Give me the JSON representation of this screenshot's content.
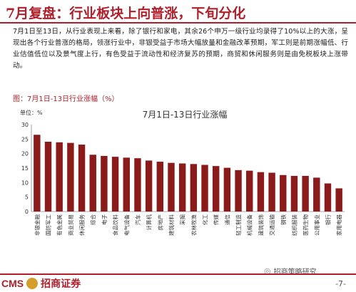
{
  "header": {
    "title": "7月复盘：行业板块上向普涨，下旬分化"
  },
  "body": {
    "paragraph": "7月1日至13日，从行业表现上来看，除了银行和家电，其余26个申万一级行业均录得了10%以上的大涨，呈现出各个行业普涨的格局，领涨行业中，非银受益于市场大幅放量和金融改革预期，军工则是前期涨幅低、行业估值低位以及景气度上行，有色受益于流动性和经济复苏的预期，商贸和休闲服务则是由免税板块上涨带动。"
  },
  "figure": {
    "caption": "图：7月1日-13日行业涨幅（%）"
  },
  "chart_data": {
    "type": "bar",
    "title": "7月1日-13日行业涨幅",
    "unit_label": "单位：%",
    "ylim": [
      0,
      30
    ],
    "yticks": [
      0,
      5,
      10,
      15,
      20,
      25,
      30
    ],
    "grid": false,
    "bar_color": "#8b1a1a",
    "categories": [
      "非银金融",
      "国防军工",
      "有色金属",
      "商业贸易",
      "休闲服务",
      "综合",
      "电子",
      "食品饮料",
      "电气设备",
      "汽车",
      "计算机",
      "房地产",
      "建筑材料",
      "采掘",
      "农林牧渔",
      "化工",
      "传媒",
      "通信",
      "轻工制造",
      "机械设备",
      "建筑装饰",
      "交通运输",
      "钢铁",
      "纺织服装",
      "医药生物",
      "公用事业",
      "银行",
      "家用电器"
    ],
    "values": [
      26.5,
      24.1,
      23.9,
      23.7,
      23.1,
      19.6,
      19.2,
      18.9,
      18.6,
      18.4,
      17.6,
      17.2,
      16.8,
      16.6,
      16.4,
      16.1,
      15.7,
      15.1,
      14.3,
      14.1,
      13.6,
      13.4,
      12.6,
      12.3,
      12.3,
      11.7,
      9.7,
      8.0
    ]
  },
  "footer": {
    "logo_cms": "CMS",
    "logo_cn": "招商证券",
    "wechat": "招商策略研究",
    "page": "-7-"
  }
}
